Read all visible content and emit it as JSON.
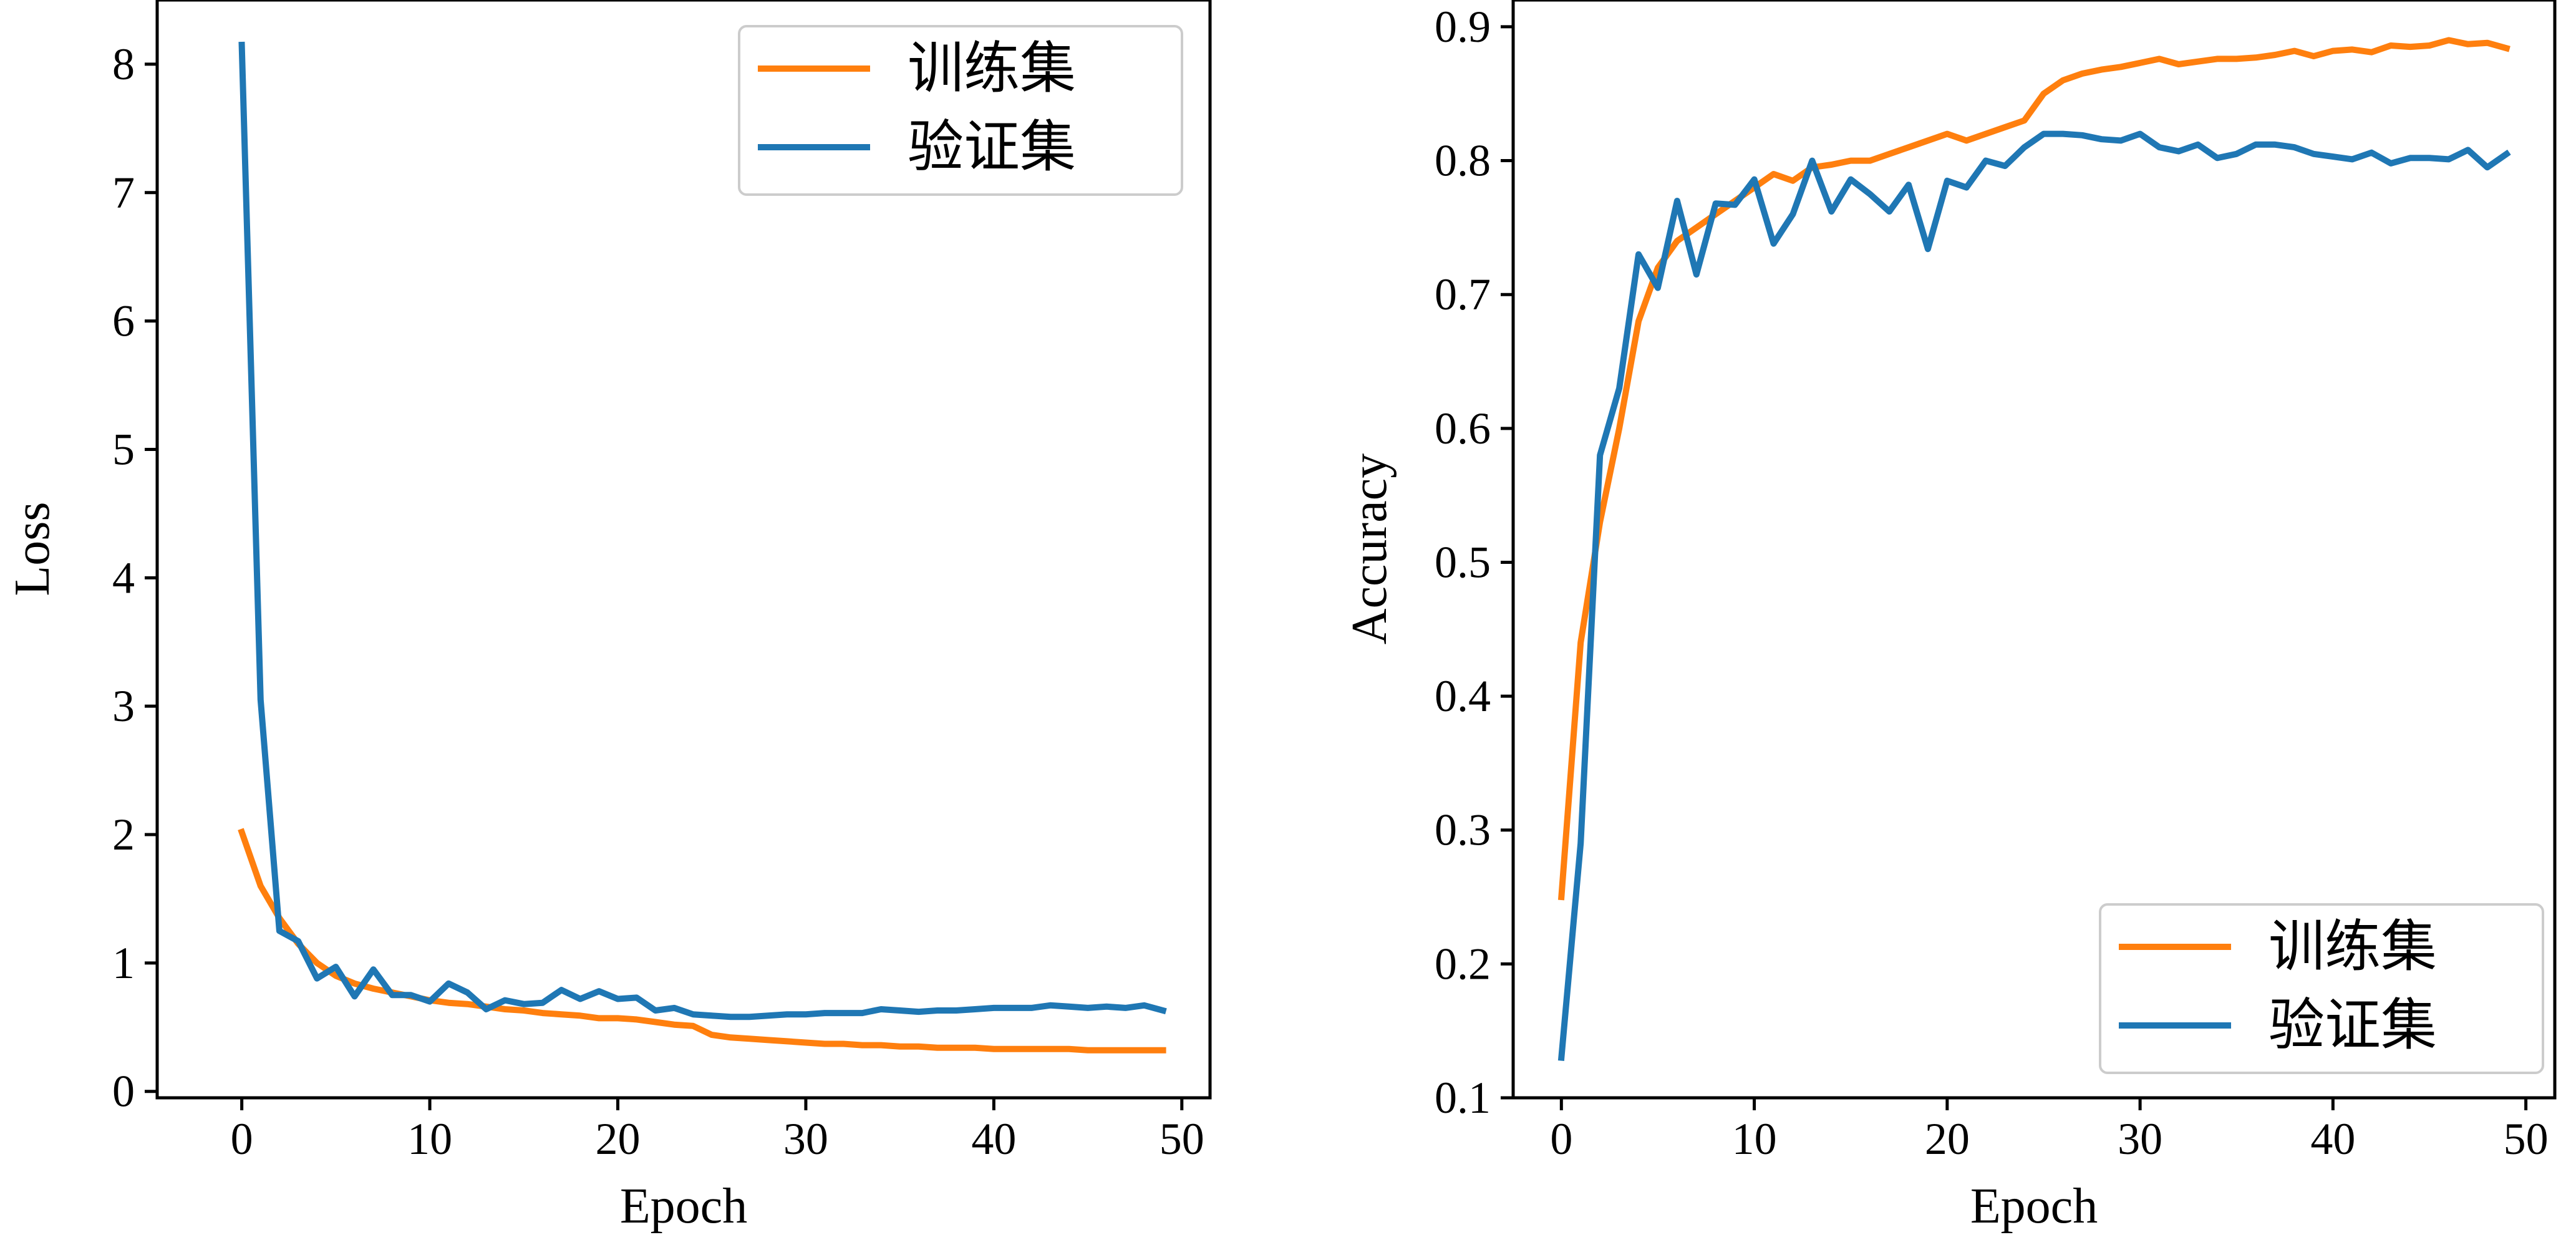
{
  "chart_data": [
    {
      "type": "line",
      "xlabel": "Epoch",
      "ylabel": "Loss",
      "xlim": [
        -4.5,
        51.5
      ],
      "ylim": [
        -0.05,
        8.5
      ],
      "xticks": [
        0,
        10,
        20,
        30,
        40,
        50
      ],
      "yticks": [
        0,
        1,
        2,
        3,
        4,
        5,
        6,
        7,
        8
      ],
      "grid": false,
      "legend_position": "top-right",
      "x": [
        0,
        1,
        2,
        3,
        4,
        5,
        6,
        7,
        8,
        9,
        10,
        11,
        12,
        13,
        14,
        15,
        16,
        17,
        18,
        19,
        20,
        21,
        22,
        23,
        24,
        25,
        26,
        27,
        28,
        29,
        30,
        31,
        32,
        33,
        34,
        35,
        36,
        37,
        38,
        39,
        40,
        41,
        42,
        43,
        44,
        45,
        46,
        47,
        48,
        49
      ],
      "series": [
        {
          "name": "训练集",
          "color": "#ff7f0e",
          "values": [
            2.02,
            1.6,
            1.35,
            1.15,
            1.0,
            0.9,
            0.84,
            0.8,
            0.77,
            0.74,
            0.71,
            0.69,
            0.68,
            0.66,
            0.64,
            0.63,
            0.61,
            0.6,
            0.59,
            0.57,
            0.57,
            0.56,
            0.54,
            0.52,
            0.51,
            0.44,
            0.42,
            0.41,
            0.4,
            0.39,
            0.38,
            0.37,
            0.37,
            0.36,
            0.36,
            0.35,
            0.35,
            0.34,
            0.34,
            0.34,
            0.33,
            0.33,
            0.33,
            0.33,
            0.33,
            0.32,
            0.32,
            0.32,
            0.32,
            0.32
          ]
        },
        {
          "name": "验证集",
          "color": "#1f77b4",
          "values": [
            8.15,
            3.05,
            1.25,
            1.17,
            0.88,
            0.97,
            0.74,
            0.95,
            0.75,
            0.75,
            0.7,
            0.84,
            0.77,
            0.64,
            0.71,
            0.68,
            0.69,
            0.79,
            0.72,
            0.78,
            0.72,
            0.73,
            0.63,
            0.65,
            0.6,
            0.59,
            0.58,
            0.58,
            0.59,
            0.6,
            0.6,
            0.61,
            0.61,
            0.61,
            0.64,
            0.63,
            0.62,
            0.63,
            0.63,
            0.64,
            0.65,
            0.65,
            0.65,
            0.67,
            0.66,
            0.65,
            0.66,
            0.65,
            0.67,
            0.63
          ]
        }
      ]
    },
    {
      "type": "line",
      "xlabel": "Epoch",
      "ylabel": "Accuracy",
      "xlim": [
        -2.5,
        51.5
      ],
      "ylim": [
        0.1,
        0.92
      ],
      "xticks": [
        0,
        10,
        20,
        30,
        40,
        50
      ],
      "yticks": [
        0.1,
        0.2,
        0.3,
        0.4,
        0.5,
        0.6,
        0.7,
        0.8,
        0.9
      ],
      "ytick_labels": [
        "0.1",
        "0.2",
        "0.3",
        "0.4",
        "0.5",
        "0.6",
        "0.7",
        "0.8",
        "0.9"
      ],
      "grid": false,
      "legend_position": "bottom-right",
      "x": [
        0,
        1,
        2,
        3,
        4,
        5,
        6,
        7,
        8,
        9,
        10,
        11,
        12,
        13,
        14,
        15,
        16,
        17,
        18,
        19,
        20,
        21,
        22,
        23,
        24,
        25,
        26,
        27,
        28,
        29,
        30,
        31,
        32,
        33,
        34,
        35,
        36,
        37,
        38,
        39,
        40,
        41,
        42,
        43,
        44,
        45,
        46,
        47,
        48,
        49
      ],
      "series": [
        {
          "name": "训练集",
          "color": "#ff7f0e",
          "values": [
            0.25,
            0.44,
            0.53,
            0.6,
            0.68,
            0.72,
            0.74,
            0.75,
            0.76,
            0.77,
            0.78,
            0.79,
            0.785,
            0.795,
            0.797,
            0.8,
            0.8,
            0.805,
            0.81,
            0.815,
            0.82,
            0.815,
            0.82,
            0.825,
            0.83,
            0.85,
            0.86,
            0.865,
            0.868,
            0.87,
            0.873,
            0.876,
            0.872,
            0.874,
            0.876,
            0.876,
            0.877,
            0.879,
            0.882,
            0.878,
            0.882,
            0.883,
            0.881,
            0.886,
            0.885,
            0.886,
            0.89,
            0.887,
            0.888,
            0.884
          ]
        },
        {
          "name": "验证集",
          "color": "#1f77b4",
          "values": [
            0.13,
            0.29,
            0.58,
            0.63,
            0.73,
            0.705,
            0.77,
            0.715,
            0.768,
            0.767,
            0.786,
            0.738,
            0.76,
            0.8,
            0.762,
            0.786,
            0.775,
            0.762,
            0.782,
            0.734,
            0.785,
            0.78,
            0.8,
            0.796,
            0.81,
            0.82,
            0.82,
            0.819,
            0.816,
            0.815,
            0.82,
            0.81,
            0.807,
            0.812,
            0.802,
            0.805,
            0.812,
            0.812,
            0.81,
            0.805,
            0.803,
            0.801,
            0.806,
            0.798,
            0.802,
            0.802,
            0.801,
            0.808,
            0.795,
            0.805
          ]
        }
      ]
    }
  ]
}
